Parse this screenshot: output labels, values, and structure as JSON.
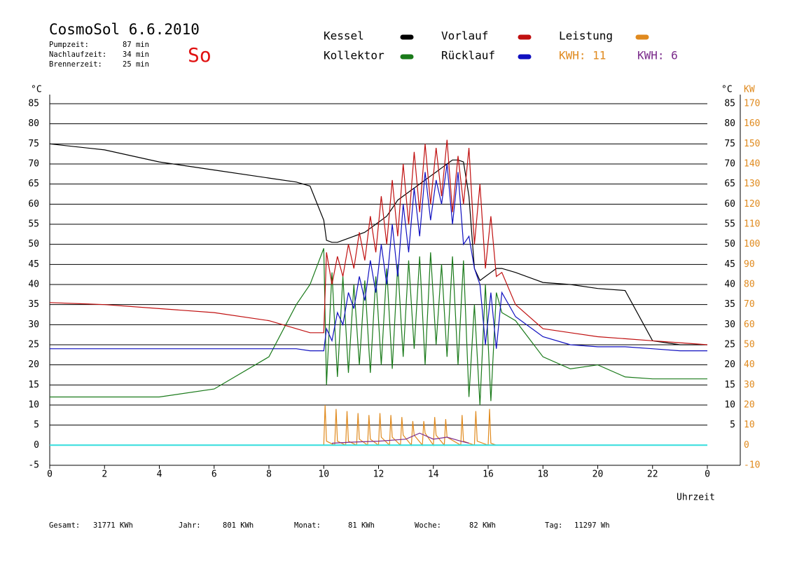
{
  "chart_data": {
    "type": "line",
    "title": "CosmoSol 6.6.2010",
    "info": [
      [
        "Pumpzeit:",
        "87 min"
      ],
      [
        "Nachlaufzeit:",
        "34 min"
      ],
      [
        "Brennerzeit:",
        "25 min"
      ]
    ],
    "day": "So",
    "y_unit": "°C",
    "y2_unit": "KW",
    "x_label": "Uhrzeit",
    "kwh_labels": [
      {
        "text": "KWH: 11",
        "color": "#e08a1e"
      },
      {
        "text": "KWH: 6",
        "color": "#7a2a8a"
      }
    ],
    "footer": [
      [
        "Gesamt:",
        "31771 KWh"
      ],
      [
        "Jahr:",
        "801 KWh"
      ],
      [
        "Monat:",
        "81 KWh"
      ],
      [
        "Woche:",
        "82 KWh"
      ],
      [
        "Tag:",
        "11297 Wh"
      ]
    ],
    "xlim": [
      0,
      24
    ],
    "xticks": [
      0,
      2,
      4,
      6,
      8,
      10,
      12,
      14,
      16,
      18,
      20,
      22,
      {
        "value": 24,
        "label": "0"
      }
    ],
    "ylim": [
      -5,
      85
    ],
    "yticks": [
      -5,
      0,
      5,
      10,
      15,
      20,
      25,
      30,
      35,
      40,
      45,
      50,
      55,
      60,
      65,
      70,
      75,
      80,
      85
    ],
    "y_right_ticks": [
      5,
      10,
      15,
      20,
      25,
      30,
      35,
      40,
      45,
      50,
      55,
      60,
      65,
      70,
      75,
      80,
      85
    ],
    "y2lim": [
      -10,
      170
    ],
    "y2ticks": [
      -10,
      0,
      10,
      20,
      30,
      40,
      50,
      60,
      70,
      80,
      90,
      100,
      110,
      120,
      130,
      140,
      150,
      160,
      170
    ],
    "grid": true,
    "series": [
      {
        "name": "Kessel",
        "color": "#000000",
        "x": [
          0,
          2,
          4,
          6,
          8,
          9,
          9.5,
          10,
          10.1,
          10.3,
          10.5,
          10.7,
          10.9,
          11.1,
          11.3,
          11.5,
          11.7,
          11.9,
          12.1,
          12.3,
          12.5,
          12.7,
          12.9,
          13.1,
          13.3,
          13.5,
          13.7,
          13.9,
          14.1,
          14.3,
          14.5,
          14.7,
          14.9,
          15.1,
          15.3,
          15.5,
          15.7,
          15.9,
          16.1,
          16.3,
          16.5,
          17,
          18,
          19,
          20,
          21,
          22,
          23,
          24
        ],
        "values": [
          75,
          73.5,
          70.5,
          68.5,
          66.5,
          65.5,
          64.5,
          56,
          51,
          50.5,
          50.5,
          51,
          51.5,
          52,
          52.5,
          53,
          54,
          55,
          56,
          57,
          59,
          61,
          62,
          63,
          64,
          65,
          66,
          67,
          68,
          69,
          70,
          71,
          71,
          70.5,
          62,
          44,
          41,
          42,
          43,
          44,
          44,
          43,
          40.5,
          40,
          39,
          38.5,
          26,
          25,
          25
        ]
      },
      {
        "name": "Kollektor",
        "color": "#1a7a1a",
        "x": [
          0,
          2,
          4,
          6,
          8,
          9,
          9.5,
          10,
          10.1,
          10.3,
          10.5,
          10.7,
          10.9,
          11.1,
          11.3,
          11.5,
          11.7,
          11.9,
          12.1,
          12.3,
          12.5,
          12.7,
          12.9,
          13.1,
          13.3,
          13.5,
          13.7,
          13.9,
          14.1,
          14.3,
          14.5,
          14.7,
          14.9,
          15.1,
          15.3,
          15.5,
          15.7,
          15.9,
          16.1,
          16.3,
          16.5,
          17,
          18,
          19,
          20,
          21,
          22,
          23,
          24
        ],
        "values": [
          12,
          12,
          12,
          14,
          22,
          35,
          40,
          49,
          15,
          43,
          17,
          42,
          18,
          40,
          20,
          41,
          18,
          42,
          20,
          44,
          19,
          45,
          22,
          46,
          24,
          47,
          20,
          48,
          25,
          45,
          22,
          47,
          20,
          46,
          12,
          35,
          10,
          40,
          11,
          38,
          33,
          31,
          22,
          19,
          20,
          17,
          16.5,
          16.5,
          16.5
        ]
      },
      {
        "name": "Vorlauf",
        "color": "#c01010",
        "x": [
          0,
          2,
          4,
          6,
          8,
          9,
          9.5,
          10,
          10.1,
          10.3,
          10.5,
          10.7,
          10.9,
          11.1,
          11.3,
          11.5,
          11.7,
          11.9,
          12.1,
          12.3,
          12.5,
          12.7,
          12.9,
          13.1,
          13.3,
          13.5,
          13.7,
          13.9,
          14.1,
          14.3,
          14.5,
          14.7,
          14.9,
          15.1,
          15.3,
          15.5,
          15.7,
          15.9,
          16.1,
          16.3,
          16.5,
          17,
          18,
          19,
          20,
          21,
          22,
          23,
          24
        ],
        "values": [
          35.5,
          35,
          34,
          33,
          31,
          29,
          28,
          28,
          48,
          40,
          47,
          42,
          50,
          44,
          53,
          46,
          57,
          48,
          62,
          50,
          66,
          52,
          70,
          55,
          73,
          58,
          75,
          60,
          74,
          62,
          76,
          58,
          72,
          60,
          74,
          50,
          65,
          44,
          57,
          42,
          43,
          35,
          29,
          28,
          27,
          26.5,
          26,
          25.5,
          25
        ]
      },
      {
        "name": "Rücklauf",
        "color": "#1010c0",
        "x": [
          0,
          2,
          4,
          6,
          8,
          9,
          9.5,
          10,
          10.1,
          10.3,
          10.5,
          10.7,
          10.9,
          11.1,
          11.3,
          11.5,
          11.7,
          11.9,
          12.1,
          12.3,
          12.5,
          12.7,
          12.9,
          13.1,
          13.3,
          13.5,
          13.7,
          13.9,
          14.1,
          14.3,
          14.5,
          14.7,
          14.9,
          15.1,
          15.3,
          15.5,
          15.7,
          15.9,
          16.1,
          16.3,
          16.5,
          17,
          18,
          19,
          20,
          21,
          22,
          23,
          24
        ],
        "values": [
          24,
          24,
          24,
          24,
          24,
          24,
          23.5,
          23.5,
          29,
          26,
          33,
          30,
          38,
          34,
          42,
          36,
          46,
          38,
          50,
          40,
          55,
          42,
          60,
          48,
          64,
          52,
          68,
          56,
          66,
          60,
          70,
          55,
          68,
          50,
          52,
          44,
          40,
          25,
          38,
          24,
          38,
          32,
          27,
          25,
          24.5,
          24.5,
          24,
          23.5,
          23.5
        ]
      },
      {
        "name": "Leistung",
        "color": "#e08a1e",
        "axis": "y2",
        "x": [
          10,
          10.05,
          10.1,
          10.4,
          10.45,
          10.5,
          10.8,
          10.85,
          10.9,
          11.2,
          11.25,
          11.3,
          11.6,
          11.65,
          11.7,
          12,
          12.05,
          12.1,
          12.4,
          12.45,
          12.5,
          12.8,
          12.85,
          12.9,
          13.2,
          13.25,
          13.3,
          13.6,
          13.65,
          13.7,
          14,
          14.05,
          14.1,
          14.4,
          14.45,
          14.5,
          15,
          15.05,
          15.1,
          15.5,
          15.55,
          15.6,
          16,
          16.05,
          16.1,
          16.3
        ],
        "values": [
          0,
          20,
          2,
          0,
          18,
          2,
          0,
          17,
          2,
          0,
          16,
          3,
          0,
          15,
          3,
          0,
          16,
          4,
          0,
          15,
          4,
          0,
          14,
          5,
          0,
          12,
          5,
          0,
          12,
          6,
          0,
          14,
          5,
          0,
          13,
          4,
          0,
          15,
          2,
          0,
          17,
          2,
          0,
          18,
          1,
          0
        ]
      },
      {
        "color": "#7a2a8a",
        "axis": "y2",
        "x": [
          10.3,
          11,
          12,
          13,
          13.5,
          14,
          14.5,
          15,
          15.3
        ],
        "values": [
          1,
          1.5,
          2,
          3,
          6,
          3,
          4,
          2,
          1
        ]
      },
      {
        "color": "#33dddd",
        "x": [
          0,
          24
        ],
        "values": [
          0,
          0
        ]
      }
    ]
  }
}
